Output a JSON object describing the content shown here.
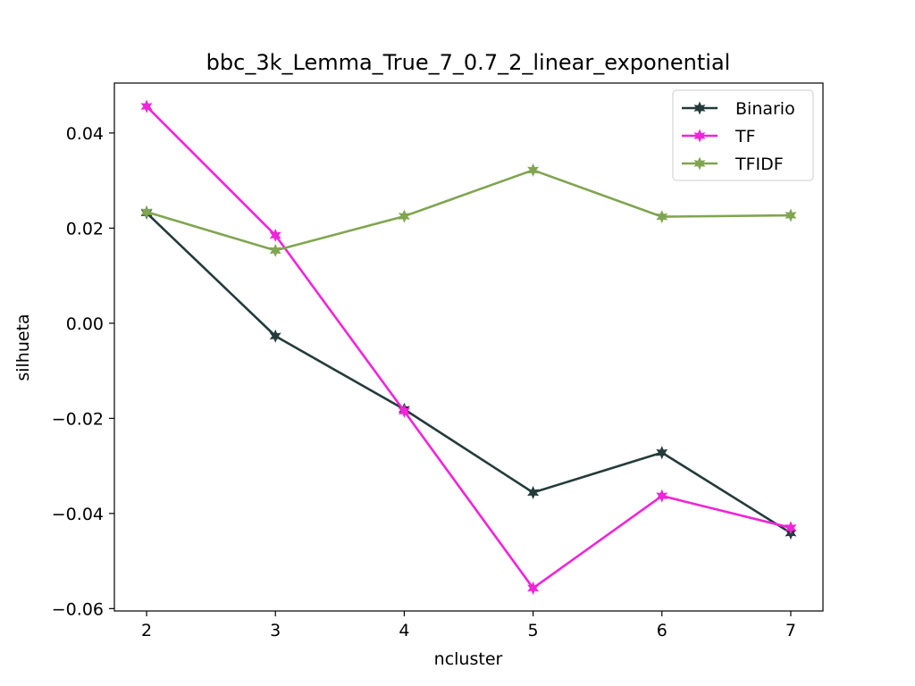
{
  "chart_data": {
    "type": "line",
    "title": "bbc_3k_Lemma_True_7_0.7_2_linear_exponential",
    "xlabel": "ncluster",
    "ylabel": "silhueta",
    "x": [
      2,
      3,
      4,
      5,
      6,
      7
    ],
    "xlim": [
      1.75,
      7.25
    ],
    "ylim": [
      -0.0605,
      0.0505
    ],
    "x_ticks": [
      2,
      3,
      4,
      5,
      6,
      7
    ],
    "x_tick_labels": [
      "2",
      "3",
      "4",
      "5",
      "6",
      "7"
    ],
    "y_ticks": [
      0.04,
      0.02,
      0.0,
      -0.02,
      -0.04,
      -0.06
    ],
    "y_tick_labels": [
      "0.04",
      "0.02",
      "0.00",
      "−0.02",
      "−0.04",
      "−0.06"
    ],
    "grid": false,
    "legend_position": "top-right",
    "series": [
      {
        "name": "Binario",
        "color": "#243b3b",
        "marker": "star",
        "values": [
          0.0232,
          -0.0027,
          -0.0181,
          -0.0356,
          -0.0272,
          -0.0441
        ]
      },
      {
        "name": "TF",
        "color": "#f024d8",
        "marker": "star",
        "values": [
          0.0456,
          0.0185,
          -0.0185,
          -0.0557,
          -0.0363,
          -0.043
        ]
      },
      {
        "name": "TFIDF",
        "color": "#80a550",
        "marker": "star",
        "values": [
          0.0234,
          0.0153,
          0.0225,
          0.0322,
          0.0224,
          0.0227
        ]
      }
    ]
  }
}
